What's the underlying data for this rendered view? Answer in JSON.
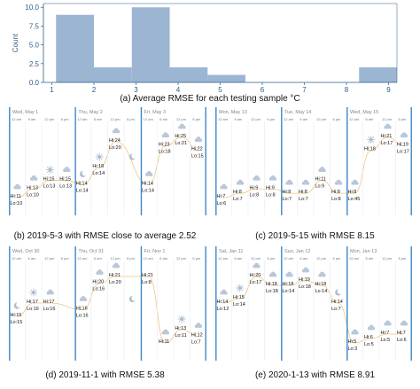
{
  "chart_data": [
    {
      "type": "bar",
      "title": "",
      "xlabel": "",
      "ylabel": "Count",
      "xlim": [
        0.8,
        9.2
      ],
      "ylim": [
        0,
        10.5
      ],
      "xticks": [
        "1",
        "2",
        "3",
        "4",
        "5",
        "6",
        "7",
        "8",
        "9"
      ],
      "yticks": [
        "0.0",
        "2.5",
        "5.0",
        "7.5",
        "10.0"
      ],
      "bins": [
        {
          "from": 1.1,
          "to": 2.0,
          "count": 9
        },
        {
          "from": 2.0,
          "to": 2.9,
          "count": 2
        },
        {
          "from": 2.9,
          "to": 3.8,
          "count": 10
        },
        {
          "from": 3.8,
          "to": 4.7,
          "count": 2
        },
        {
          "from": 4.7,
          "to": 5.6,
          "count": 1
        },
        {
          "from": 5.6,
          "to": 6.5,
          "count": 0
        },
        {
          "from": 6.5,
          "to": 7.4,
          "count": 0
        },
        {
          "from": 7.4,
          "to": 8.3,
          "count": 0
        },
        {
          "from": 8.3,
          "to": 9.2,
          "count": 2
        }
      ]
    }
  ],
  "captions": {
    "a": "(a) Average RMSE for each testing sample °C",
    "b": "(b) 2019-5-3 with RMSE close to average 2.52",
    "c": "(c) 2019-5-15 with RMSE 8.15",
    "d": "(d) 2019-11-1 with RMSE 5.38",
    "e": "(e) 2020-1-13 with RMSE 8.91"
  },
  "time_ticks": [
    "12 am",
    "6 am",
    "12 pm",
    "6 pm"
  ],
  "colors": {
    "bar": "#9bb5d3",
    "day_line": "#3a87c8",
    "temp_line": "#f0b868",
    "cloud": "#b9c7da",
    "moon": "#aebcd0",
    "sun": "#aebcd0"
  },
  "panels": [
    {
      "id": "b",
      "days": [
        {
          "date": "Wed, May 1",
          "slots": [
            {
              "icon": "cloud",
              "hi": "Hi:11",
              "lo": "Lo:10"
            },
            {
              "icon": "cloud",
              "hi": "Hi:13",
              "lo": "Lo:10"
            },
            {
              "icon": "sun",
              "hi": "Hi:15",
              "lo": "Lo:13"
            },
            {
              "icon": "cloud",
              "hi": "Hi:15",
              "lo": "Lo:13"
            }
          ]
        },
        {
          "date": "Thu, May 2",
          "slots": [
            {
              "icon": "moon",
              "hi": "Hi:14",
              "lo": "Lo:14"
            },
            {
              "icon": "sun",
              "hi": "Hi:18",
              "lo": "Lo:14"
            },
            {
              "icon": "cloud",
              "hi": "Hi:24",
              "lo": "Lo:20"
            },
            {
              "icon": "moon",
              "hi": "",
              "lo": ""
            }
          ]
        },
        {
          "date": "Fri, May 3",
          "slots": [
            {
              "icon": "cloud",
              "hi": "Hi:14",
              "lo": "Lo:14"
            },
            {
              "icon": "cloud",
              "hi": "Hi:23",
              "lo": "Lo:18"
            },
            {
              "icon": "cloud",
              "hi": "Hi:25",
              "lo": "Lo:21"
            },
            {
              "icon": "cloud",
              "hi": "Hi:22",
              "lo": "Lo:15"
            }
          ]
        }
      ]
    },
    {
      "id": "c",
      "days": [
        {
          "date": "Mon, May 13",
          "slots": [
            {
              "icon": "cloud",
              "hi": "Hi:7",
              "lo": "Lo:6"
            },
            {
              "icon": "cloud",
              "hi": "Hi:8",
              "lo": "Lo:7"
            },
            {
              "icon": "cloud",
              "hi": "Hi:9",
              "lo": "Lo:8"
            },
            {
              "icon": "cloud",
              "hi": "Hi:9",
              "lo": "Lo:8"
            }
          ]
        },
        {
          "date": "Tue, May 14",
          "slots": [
            {
              "icon": "cloud",
              "hi": "Hi:8",
              "lo": "Lo:7"
            },
            {
              "icon": "cloud",
              "hi": "Hi:8",
              "lo": "Lo:7"
            },
            {
              "icon": "cloud",
              "hi": "Hi:11",
              "lo": "Lo:9"
            },
            {
              "icon": "cloud",
              "hi": "Hi:8",
              "lo": "Lo:8"
            }
          ]
        },
        {
          "date": "Wed, May 15",
          "slots": [
            {
              "icon": "cloud",
              "hi": "Hi:8",
              "lo": "Lo:45"
            },
            {
              "icon": "sun",
              "hi": "Hi:18",
              "lo": ""
            },
            {
              "icon": "cloud",
              "hi": "Hi:21",
              "lo": "Lo:17"
            },
            {
              "icon": "cloud",
              "hi": "Hi:19",
              "lo": "Lo:17"
            }
          ]
        }
      ]
    },
    {
      "id": "d",
      "days": [
        {
          "date": "Wed, Oct 30",
          "slots": [
            {
              "icon": "moon",
              "hi": "Hi:15",
              "lo": "Lo:15"
            },
            {
              "icon": "sun",
              "hi": "Hi:17",
              "lo": "Lo:16"
            },
            {
              "icon": "cloud",
              "hi": "Hi:17",
              "lo": "Lo:16"
            },
            {
              "icon": "",
              "hi": "",
              "lo": ""
            }
          ]
        },
        {
          "date": "Thu, Oct 31",
          "slots": [
            {
              "icon": "cloud",
              "hi": "Hi:16",
              "lo": "Lo:16"
            },
            {
              "icon": "cloud",
              "hi": "Hi:20",
              "lo": "Lo:16"
            },
            {
              "icon": "cloud",
              "hi": "Hi:21",
              "lo": "Lo:20"
            },
            {
              "icon": "moon",
              "hi": "",
              "lo": ""
            }
          ]
        },
        {
          "date": "Fri, Nov 1",
          "slots": [
            {
              "icon": "",
              "hi": "Hi:21",
              "lo": "Lo:8"
            },
            {
              "icon": "cloud",
              "hi": "Hi:11",
              "lo": ""
            },
            {
              "icon": "sun",
              "hi": "Hi:13",
              "lo": "Lo:11"
            },
            {
              "icon": "cloud",
              "hi": "Hi:12",
              "lo": "Lo:7"
            }
          ]
        }
      ]
    },
    {
      "id": "e",
      "days": [
        {
          "date": "Sat, Jan 11",
          "slots": [
            {
              "icon": "cloud",
              "hi": "Hi:14",
              "lo": "Lo:12"
            },
            {
              "icon": "sun",
              "hi": "Hi:15",
              "lo": "Lo:14"
            },
            {
              "icon": "cloud",
              "hi": "Hi:20",
              "lo": "Lo:17"
            },
            {
              "icon": "cloud",
              "hi": "Hi:18",
              "lo": "Lo:18"
            }
          ]
        },
        {
          "date": "Sun, Jan 12",
          "slots": [
            {
              "icon": "cloud",
              "hi": "Hi:18",
              "lo": "Lo:14"
            },
            {
              "icon": "cloud",
              "hi": "Hi:19",
              "lo": "Lo:18"
            },
            {
              "icon": "cloud",
              "hi": "Hi:18",
              "lo": "Lo:14"
            },
            {
              "icon": "moon",
              "hi": "Hi:14",
              "lo": "Lo:7"
            }
          ]
        },
        {
          "date": "Mon, Jan 13",
          "slots": [
            {
              "icon": "cloud",
              "hi": "Hi:5",
              "lo": "Lo:3"
            },
            {
              "icon": "cloud",
              "hi": "Hi:6",
              "lo": "Lo:5"
            },
            {
              "icon": "cloud",
              "hi": "Hi:7",
              "lo": "Lo:5"
            },
            {
              "icon": "cloud",
              "hi": "Hi:7",
              "lo": "Lo:6"
            }
          ]
        }
      ]
    }
  ]
}
